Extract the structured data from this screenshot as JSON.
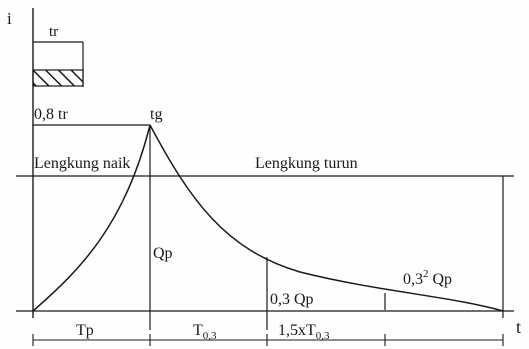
{
  "diagram": {
    "axis_i": "i",
    "axis_t": "t",
    "tr": "tr",
    "tg": "tg",
    "point_8_tr": "0,8 tr",
    "rising_limb": "Lengkung naik",
    "falling_limb": "Lengkung turun",
    "qp": "Qp",
    "qp_03": "0,3 Qp",
    "qp_03sq_base": "0,3",
    "qp_03sq_exp": "2",
    "qp_03sq_tail": " Qp",
    "tp": "Tp",
    "t03_base": "T",
    "t03_sub": "0,3",
    "t15_base": "1,5xT",
    "t15_sub": "0,3"
  }
}
